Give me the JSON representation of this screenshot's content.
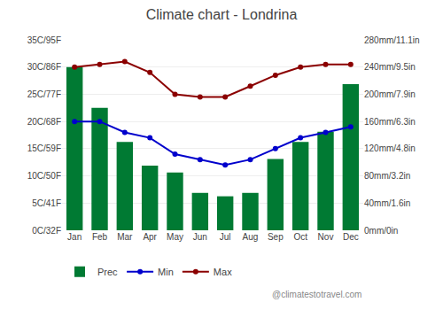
{
  "chart_data": {
    "type": "bar",
    "title": "Climate chart - Londrina",
    "categories": [
      "Jan",
      "Feb",
      "Mar",
      "Apr",
      "May",
      "Jun",
      "Jul",
      "Aug",
      "Sep",
      "Oct",
      "Nov",
      "Dec"
    ],
    "series": [
      {
        "name": "Prec",
        "type": "bar",
        "color": "#007A33",
        "axis": "y2",
        "values": [
          240,
          180,
          130,
          95,
          85,
          55,
          50,
          55,
          105,
          130,
          145,
          215
        ]
      },
      {
        "name": "Min",
        "type": "line",
        "color": "#0000CC",
        "marker": "circle",
        "values": [
          20,
          20,
          18,
          17,
          14,
          13,
          12,
          13,
          15,
          17,
          18,
          19
        ]
      },
      {
        "name": "Max",
        "type": "line",
        "color": "#8B0000",
        "marker": "circle",
        "values": [
          30,
          30.5,
          31,
          29,
          25,
          24.5,
          24.5,
          26.5,
          28.5,
          30,
          30.5,
          30.5
        ]
      }
    ],
    "ylim": [
      0,
      35
    ],
    "yticks": [
      {
        "value": 0,
        "label": "0C/32F"
      },
      {
        "value": 5,
        "label": "5C/41F"
      },
      {
        "value": 10,
        "label": "10C/50F"
      },
      {
        "value": 15,
        "label": "15C/59F"
      },
      {
        "value": 20,
        "label": "20C/68F"
      },
      {
        "value": 25,
        "label": "25C/77F"
      },
      {
        "value": 30,
        "label": "30C/86F"
      },
      {
        "value": 35,
        "label": "35C/95F"
      }
    ],
    "y2lim": [
      0,
      280
    ],
    "y2ticks": [
      {
        "value": 0,
        "label": "0mm/0in"
      },
      {
        "value": 40,
        "label": "40mm/1.6in"
      },
      {
        "value": 80,
        "label": "80mm/3.2in"
      },
      {
        "value": 120,
        "label": "120mm/4.8in"
      },
      {
        "value": 160,
        "label": "160mm/6.3in"
      },
      {
        "value": 200,
        "label": "200mm/7.9in"
      },
      {
        "value": 240,
        "label": "240mm/9.5in"
      },
      {
        "value": 280,
        "label": "280mm/11.1in"
      }
    ],
    "grid": true,
    "legend": "bottom",
    "annotations": [
      "@climatestotravel.com"
    ]
  }
}
